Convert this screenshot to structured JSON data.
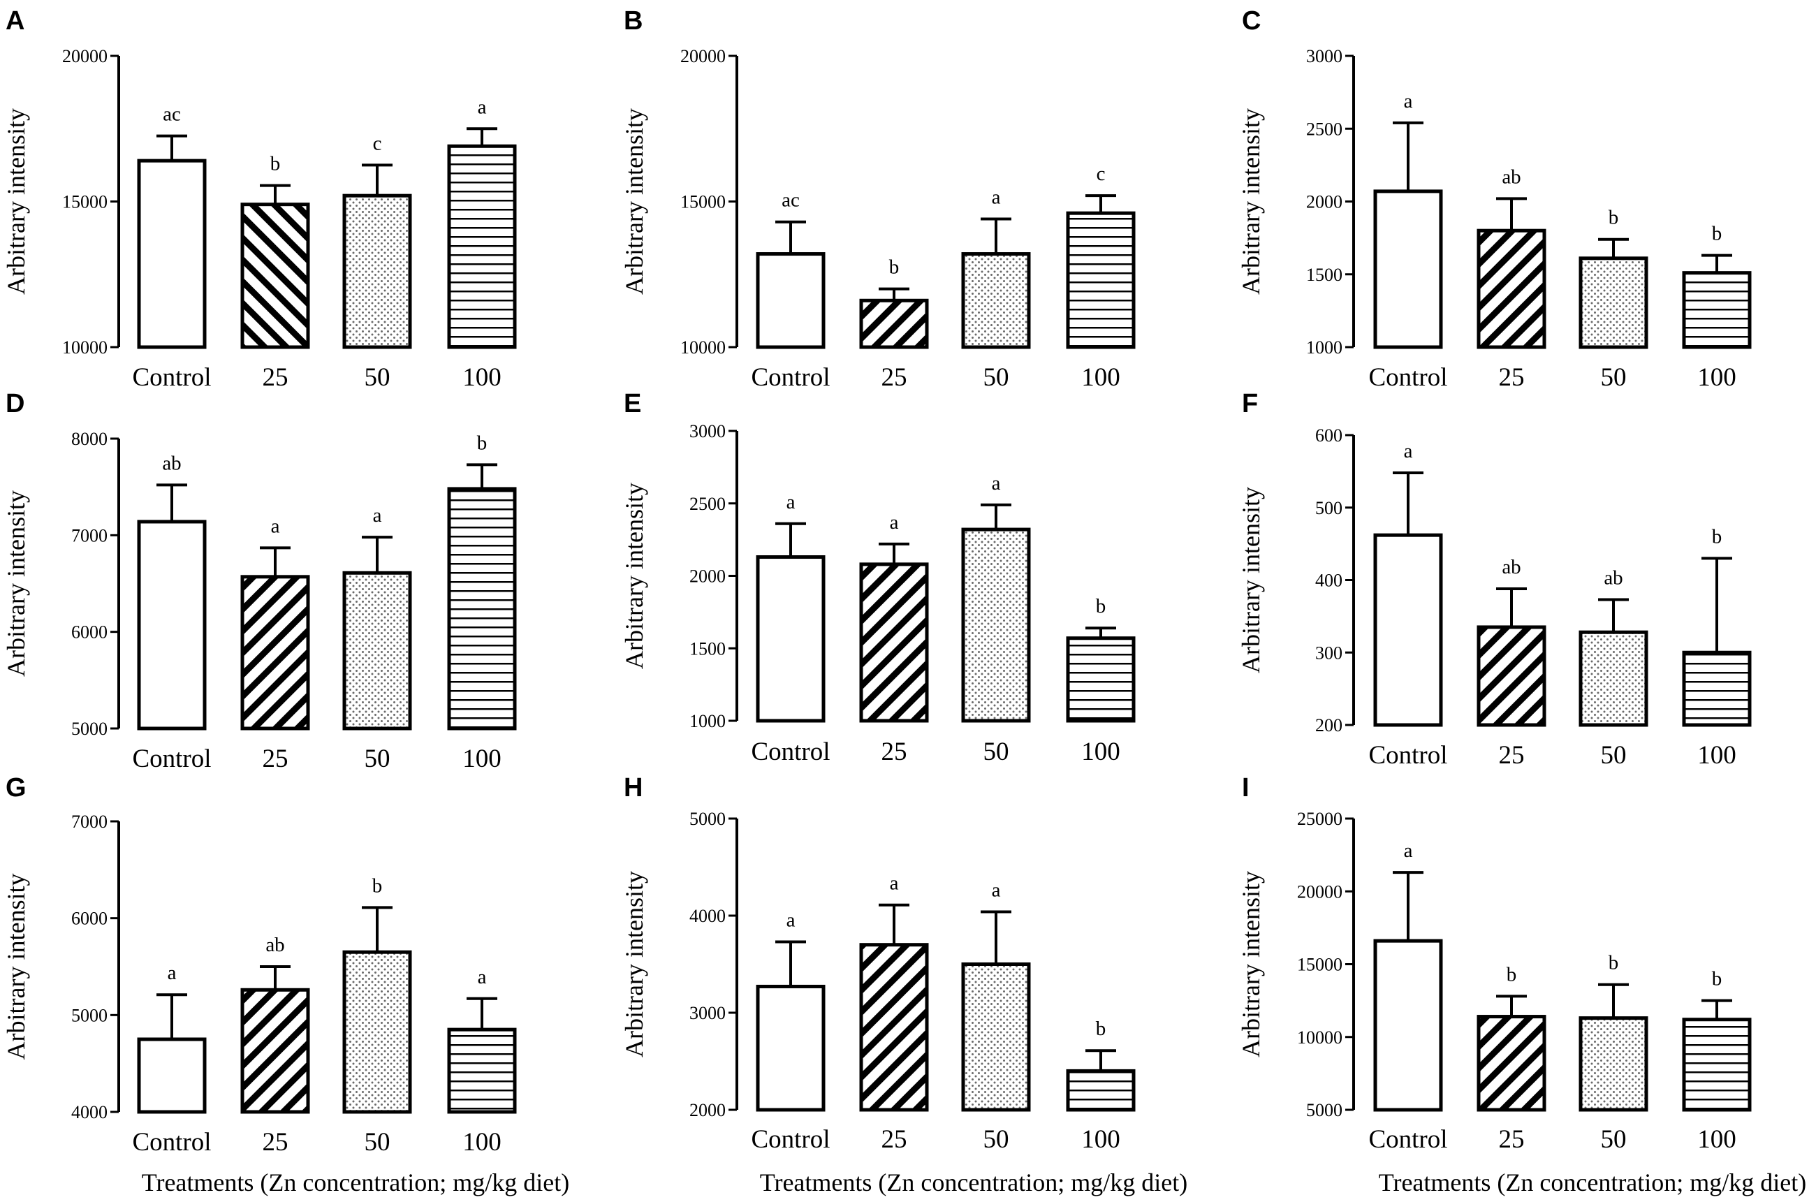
{
  "figure": {
    "x_axis_title": "Treatments (Zn concentration; mg/kg diet)"
  },
  "chart_data": [
    {
      "panel": "A",
      "type": "bar",
      "ylabel": "Arbitrary intensity",
      "categories": [
        "Control",
        "25",
        "50",
        "100"
      ],
      "ylim": [
        10000,
        20000
      ],
      "yticks": [
        10000,
        15000,
        20000
      ],
      "values": [
        16400,
        14900,
        15200,
        16900
      ],
      "errors": [
        850,
        650,
        1050,
        600
      ],
      "significance": [
        "ac",
        "b",
        "c",
        "a"
      ],
      "patterns": [
        "none",
        "diag-right",
        "dots",
        "horizontal"
      ]
    },
    {
      "panel": "B",
      "type": "bar",
      "ylabel": "Arbitrary intensity",
      "categories": [
        "Control",
        "25",
        "50",
        "100"
      ],
      "ylim": [
        10000,
        20000
      ],
      "yticks": [
        10000,
        15000,
        20000
      ],
      "values": [
        13200,
        11600,
        13200,
        14600
      ],
      "errors": [
        1100,
        400,
        1200,
        600
      ],
      "significance": [
        "ac",
        "b",
        "a",
        "c"
      ],
      "patterns": [
        "none",
        "diag-left",
        "dots",
        "horizontal"
      ]
    },
    {
      "panel": "C",
      "type": "bar",
      "ylabel": "Arbitrary intensity",
      "categories": [
        "Control",
        "25",
        "50",
        "100"
      ],
      "ylim": [
        1000,
        3000
      ],
      "yticks": [
        1000,
        1500,
        2000,
        2500,
        3000
      ],
      "values": [
        2070,
        1800,
        1610,
        1510
      ],
      "errors": [
        470,
        220,
        130,
        120
      ],
      "significance": [
        "a",
        "ab",
        "b",
        "b"
      ],
      "patterns": [
        "none",
        "diag-left",
        "dots",
        "horizontal"
      ]
    },
    {
      "panel": "D",
      "type": "bar",
      "ylabel": "Arbitrary intensity",
      "categories": [
        "Control",
        "25",
        "50",
        "100"
      ],
      "ylim": [
        5000,
        8000
      ],
      "yticks": [
        5000,
        6000,
        7000,
        8000
      ],
      "values": [
        7140,
        6570,
        6610,
        7480
      ],
      "errors": [
        380,
        300,
        370,
        250
      ],
      "significance": [
        "ab",
        "a",
        "a",
        "b"
      ],
      "patterns": [
        "none",
        "diag-left",
        "dots",
        "horizontal"
      ]
    },
    {
      "panel": "E",
      "type": "bar",
      "ylabel": "Arbitrary intensity",
      "categories": [
        "Control",
        "25",
        "50",
        "100"
      ],
      "ylim": [
        1000,
        3000
      ],
      "yticks": [
        1000,
        1500,
        2000,
        2500,
        3000
      ],
      "values": [
        2130,
        2080,
        2320,
        1570
      ],
      "errors": [
        230,
        140,
        170,
        70
      ],
      "significance": [
        "a",
        "a",
        "a",
        "b"
      ],
      "patterns": [
        "none",
        "diag-left",
        "dots",
        "horizontal"
      ]
    },
    {
      "panel": "F",
      "type": "bar",
      "ylabel": "Arbitrary intensity",
      "categories": [
        "Control",
        "25",
        "50",
        "100"
      ],
      "ylim": [
        200,
        600
      ],
      "yticks": [
        200,
        300,
        400,
        500,
        600
      ],
      "values": [
        462,
        335,
        328,
        300
      ],
      "errors": [
        86,
        53,
        45,
        130
      ],
      "significance": [
        "a",
        "ab",
        "ab",
        "b"
      ],
      "patterns": [
        "none",
        "diag-left",
        "dots",
        "horizontal"
      ]
    },
    {
      "panel": "G",
      "type": "bar",
      "ylabel": "Arbitrary intensity",
      "categories": [
        "Control",
        "25",
        "50",
        "100"
      ],
      "ylim": [
        4000,
        7000
      ],
      "yticks": [
        4000,
        5000,
        6000,
        7000
      ],
      "values": [
        4750,
        5260,
        5650,
        4850
      ],
      "errors": [
        460,
        240,
        460,
        320
      ],
      "significance": [
        "a",
        "ab",
        "b",
        "a"
      ],
      "patterns": [
        "none",
        "diag-left",
        "dots",
        "horizontal"
      ]
    },
    {
      "panel": "H",
      "type": "bar",
      "ylabel": "Arbitrary intensity",
      "categories": [
        "Control",
        "25",
        "50",
        "100"
      ],
      "ylim": [
        2000,
        5000
      ],
      "yticks": [
        2000,
        3000,
        4000,
        5000
      ],
      "values": [
        3270,
        3700,
        3500,
        2400
      ],
      "errors": [
        460,
        410,
        540,
        210
      ],
      "significance": [
        "a",
        "a",
        "a",
        "b"
      ],
      "patterns": [
        "none",
        "diag-left",
        "dots",
        "horizontal"
      ]
    },
    {
      "panel": "I",
      "type": "bar",
      "ylabel": "Arbitrary intensity",
      "categories": [
        "Control",
        "25",
        "50",
        "100"
      ],
      "ylim": [
        5000,
        25000
      ],
      "yticks": [
        5000,
        10000,
        15000,
        20000,
        25000
      ],
      "values": [
        16600,
        11400,
        11300,
        11200
      ],
      "errors": [
        4700,
        1400,
        2300,
        1300
      ],
      "significance": [
        "a",
        "b",
        "b",
        "b"
      ],
      "patterns": [
        "none",
        "diag-left",
        "dots",
        "horizontal"
      ]
    }
  ]
}
